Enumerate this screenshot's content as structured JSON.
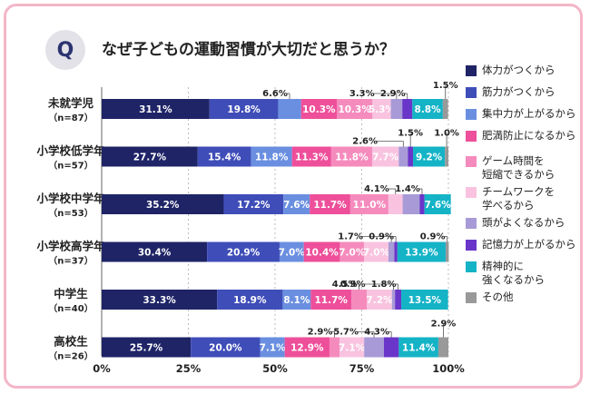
{
  "header": {
    "badge": "Q",
    "title": "なぜ子どもの運動習慣が大切だと思うか？"
  },
  "chart_data": {
    "type": "bar",
    "orientation": "horizontal",
    "stacked": true,
    "percent_stacked": true,
    "title": "なぜ子どもの運動習慣が大切だと思うか？",
    "xlim": [
      0,
      100
    ],
    "xticks": [
      "0%",
      "25%",
      "50%",
      "75%",
      "100%"
    ],
    "categories": [
      {
        "name": "未就学児",
        "n": "（n=87）"
      },
      {
        "name": "小学校低学年",
        "n": "（n=57）"
      },
      {
        "name": "小学校中学年",
        "n": "（n=53）"
      },
      {
        "name": "小学校高学年",
        "n": "（n=37）"
      },
      {
        "name": "中学生",
        "n": "（n=40）"
      },
      {
        "name": "高校生",
        "n": "（n=26）"
      }
    ],
    "series": [
      {
        "name": "体力がつくから",
        "color": "#1e2466",
        "values": [
          31.1,
          27.7,
          35.2,
          30.4,
          33.3,
          25.7
        ]
      },
      {
        "name": "筋力がつくから",
        "color": "#3f4db8",
        "values": [
          19.8,
          15.4,
          17.2,
          20.9,
          18.9,
          20.0
        ]
      },
      {
        "name": "集中力が上がるから",
        "color": "#6a8fe0",
        "values": [
          6.6,
          11.8,
          7.6,
          7.0,
          8.1,
          7.1
        ]
      },
      {
        "name": "肥満防止になるから",
        "color": "#ee4f9a",
        "values": [
          10.3,
          11.3,
          11.7,
          10.4,
          11.7,
          12.9
        ]
      },
      {
        "name": "ゲーム時間を\n短縮できるから",
        "color": "#f58bbd",
        "values": [
          10.3,
          11.8,
          11.0,
          7.0,
          4.5,
          2.9
        ]
      },
      {
        "name": "チームワークを\n学べるから",
        "color": "#f9c3e0",
        "values": [
          5.3,
          7.7,
          4.1,
          7.0,
          7.2,
          7.1
        ]
      },
      {
        "name": "頭がよくなるから",
        "color": "#a89ad6",
        "values": [
          3.3,
          2.6,
          4.9,
          1.7,
          0.9,
          5.7
        ]
      },
      {
        "name": "記憶力が上がるから",
        "color": "#6a36c9",
        "values": [
          2.9,
          1.5,
          1.4,
          0.9,
          1.8,
          4.3
        ]
      },
      {
        "name": "精神的に\n強くなるから",
        "color": "#14b3c6",
        "values": [
          8.8,
          9.2,
          7.6,
          13.9,
          13.5,
          11.4
        ]
      },
      {
        "name": "その他",
        "color": "#999999",
        "values": [
          1.5,
          1.0,
          0.0,
          0.9,
          0.0,
          2.9
        ]
      }
    ],
    "inner_labels": [
      [
        "31.1%",
        "19.8%",
        "",
        "10.3%",
        "10.3%",
        "5.3%",
        "",
        "",
        "8.8%",
        ""
      ],
      [
        "27.7%",
        "15.4%",
        "11.8%",
        "11.3%",
        "11.8%",
        "7.7%",
        "",
        "",
        "9.2%",
        ""
      ],
      [
        "35.2%",
        "17.2%",
        "7.6%",
        "11.7%",
        "11.0%",
        "",
        "",
        "",
        "7.6%",
        ""
      ],
      [
        "30.4%",
        "20.9%",
        "7.0%",
        "10.4%",
        "7.0%",
        "7.0%",
        "",
        "",
        "13.9%",
        ""
      ],
      [
        "33.3%",
        "18.9%",
        "8.1%",
        "11.7%",
        "",
        "7.2%",
        "",
        "",
        "13.5%",
        ""
      ],
      [
        "25.7%",
        "20.0%",
        "7.1%",
        "12.9%",
        "",
        "7.1%",
        "",
        "",
        "11.4%",
        ""
      ]
    ],
    "callouts": [
      [
        {
          "text": "6.6%",
          "series": 2,
          "level": 1
        },
        {
          "text": "3.3%",
          "series": 6,
          "level": 1
        },
        {
          "text": "2.9%",
          "series": 7,
          "level": 1
        },
        {
          "text": "1.5%",
          "series": 9,
          "level": 2
        }
      ],
      [
        {
          "text": "2.6%",
          "series": 6,
          "level": 1
        },
        {
          "text": "1.5%",
          "series": 7,
          "level": 2
        },
        {
          "text": "1.0%",
          "series": 9,
          "level": 2
        }
      ],
      [
        {
          "text": "4.1%",
          "series": 5,
          "level": 1
        },
        {
          "text": "1.4%",
          "series": 7,
          "level": 1
        }
      ],
      [
        {
          "text": "1.7%",
          "series": 6,
          "level": 1
        },
        {
          "text": "0.9%",
          "series": 7,
          "level": 1
        },
        {
          "text": "0.9%",
          "series": 9,
          "level": 1
        }
      ],
      [
        {
          "text": "4.5%",
          "series": 4,
          "level": 1
        },
        {
          "text": "0.9%",
          "series": 6,
          "level": 1
        },
        {
          "text": "1.8%",
          "series": 7,
          "level": 1
        }
      ],
      [
        {
          "text": "2.9%",
          "series": 4,
          "level": 1
        },
        {
          "text": "5.7%",
          "series": 6,
          "level": 1
        },
        {
          "text": "4.3%",
          "series": 7,
          "level": 1
        },
        {
          "text": "2.9%",
          "series": 9,
          "level": 2
        }
      ]
    ]
  }
}
